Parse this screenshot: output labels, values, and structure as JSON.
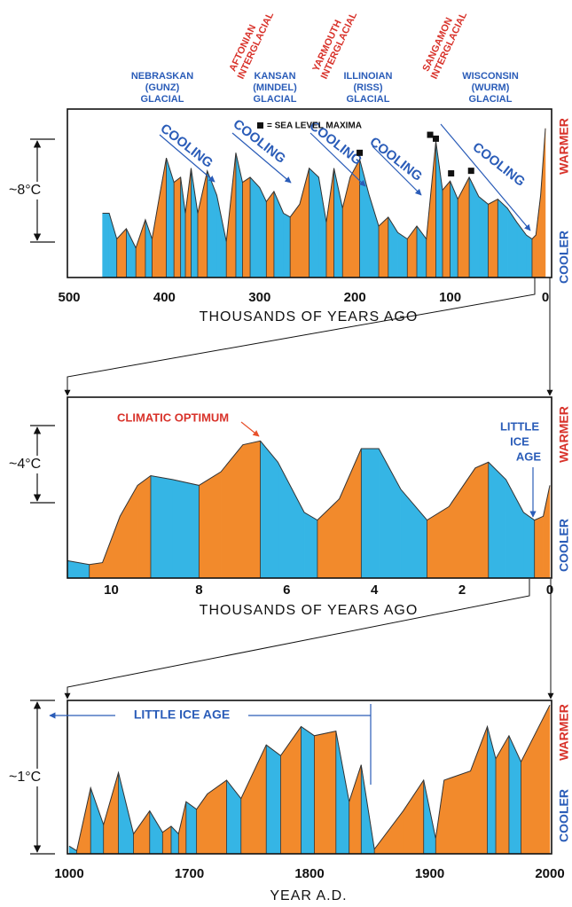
{
  "chart_data": [
    {
      "type": "area",
      "x": [
        465,
        458,
        450,
        440,
        430,
        420,
        413,
        405,
        398,
        390,
        383,
        378,
        372,
        365,
        355,
        345,
        335,
        325,
        318,
        310,
        300,
        293,
        285,
        275,
        268,
        258,
        248,
        238,
        230,
        222,
        213,
        205,
        195,
        185,
        175,
        165,
        155,
        145,
        135,
        125,
        115,
        108,
        100,
        92,
        80,
        70,
        60,
        50,
        40,
        30,
        20,
        14,
        10,
        5,
        0
      ],
      "values": [
        5.0,
        5.0,
        3.0,
        3.8,
        2.3,
        4.5,
        3.0,
        6.4,
        9.3,
        7.4,
        7.8,
        5.0,
        8.5,
        5.0,
        8.3,
        6.4,
        2.8,
        9.7,
        7.4,
        7.8,
        7.0,
        5.9,
        6.7,
        5.0,
        4.7,
        5.7,
        8.5,
        7.8,
        4.3,
        8.5,
        5.4,
        7.8,
        9.2,
        6.4,
        4.0,
        4.7,
        3.5,
        3.0,
        4.0,
        3.0,
        10.6,
        6.8,
        7.5,
        6.1,
        7.8,
        6.3,
        5.7,
        6.1,
        5.4,
        4.3,
        3.3,
        3.0,
        3.3,
        6.4,
        11.6
      ],
      "xlim": [
        500,
        0
      ],
      "ylim": [
        0,
        12
      ],
      "xticks": [
        500,
        400,
        300,
        200,
        100,
        0
      ],
      "x_scale": "linear",
      "xlabel": "THOUSANDS OF YEARS AGO",
      "scale_label": "~8°C",
      "warmer_label": "WARMER",
      "cooler_label": "COOLER",
      "colors": {
        "warming": "#f28a2c",
        "cooling": "#35b5e5"
      },
      "glacial_labels": [
        [
          "NEBRASKAN",
          "(GUNZ)",
          "GLACIAL"
        ],
        [
          "KANSAN",
          "(MINDEL)",
          "GLACIAL"
        ],
        [
          "ILLINOIAN",
          "(RISS)",
          "GLACIAL"
        ],
        [
          "WISCONSIN",
          "(WURM)",
          "GLACIAL"
        ]
      ],
      "interglacial_labels": [
        [
          "AFTONIAN",
          "INTERGLACIAL"
        ],
        [
          "YARMOUTH",
          "INTERGLACIAL"
        ],
        [
          "SANGAMON",
          "INTERGLACIAL"
        ]
      ],
      "trend_labels": [
        "COOLING",
        "COOLING",
        "COOLING",
        "COOLING",
        "COOLING"
      ],
      "sea_level_maxima": {
        "label": "= SEA LEVEL MAXIMA",
        "x": [
          195,
          121,
          115,
          99,
          78
        ],
        "y": [
          9.7,
          11.1,
          10.8,
          8.1,
          8.3
        ]
      }
    },
    {
      "type": "area",
      "x": [
        11,
        10.5,
        10.2,
        9.8,
        9.4,
        9.1,
        8.6,
        8.0,
        7.5,
        7.0,
        6.6,
        6.2,
        5.6,
        5.3,
        4.8,
        4.3,
        3.9,
        3.4,
        2.8,
        2.3,
        1.7,
        1.4,
        1.0,
        0.6,
        0.35,
        0.15,
        0
      ],
      "values": [
        0.9,
        0.7,
        0.8,
        3.2,
        4.8,
        5.3,
        5.1,
        4.8,
        5.5,
        6.9,
        7.1,
        6.0,
        3.4,
        3.0,
        4.1,
        6.7,
        6.7,
        4.6,
        3.0,
        3.7,
        5.7,
        6.0,
        5.1,
        3.4,
        3.0,
        3.2,
        4.8
      ],
      "xlim": [
        11,
        0
      ],
      "ylim": [
        0,
        9.5
      ],
      "xticks": [
        10,
        8,
        6,
        4,
        2,
        0
      ],
      "x_scale": "linear",
      "xlabel": "THOUSANDS OF YEARS AGO",
      "scale_label": "~4°C",
      "warmer_label": "WARMER",
      "cooler_label": "COOLER",
      "colors": {
        "warming": "#f28a2c",
        "cooling": "#35b5e5"
      },
      "optimum_label": "CLIMATIC OPTIMUM",
      "little_ice_age_label": [
        "LITTLE",
        "ICE",
        "AGE"
      ]
    },
    {
      "type": "area",
      "x": [
        1000,
        1044,
        1125,
        1200,
        1287,
        1375,
        1469,
        1544,
        1594,
        1637,
        1681,
        1706,
        1715,
        1731,
        1743,
        1764,
        1776,
        1793,
        1804,
        1822,
        1833,
        1843,
        1854,
        1878,
        1895,
        1905,
        1912,
        1934,
        1948,
        1955,
        1966,
        1976,
        2000
      ],
      "values": [
        0.05,
        0.02,
        0.43,
        0.19,
        0.53,
        0.13,
        0.28,
        0.14,
        0.18,
        0.13,
        0.34,
        0.29,
        0.39,
        0.48,
        0.36,
        0.71,
        0.64,
        0.83,
        0.77,
        0.8,
        0.34,
        0.58,
        0.03,
        0.28,
        0.48,
        0.1,
        0.48,
        0.54,
        0.83,
        0.62,
        0.77,
        0.6,
        0.97
      ],
      "xlim": [
        1000,
        2000
      ],
      "ylim": [
        0,
        1
      ],
      "xticks": [
        1000,
        1700,
        1800,
        1900,
        2000
      ],
      "x_scale": "uneven",
      "xlabel": "YEAR A.D.",
      "scale_label": "~1°C",
      "warmer_label": "WARMER",
      "cooler_label": "COOLER",
      "colors": {
        "warming": "#f28a2c",
        "cooling": "#35b5e5"
      },
      "little_ice_age_label": "LITTLE ICE AGE"
    }
  ]
}
